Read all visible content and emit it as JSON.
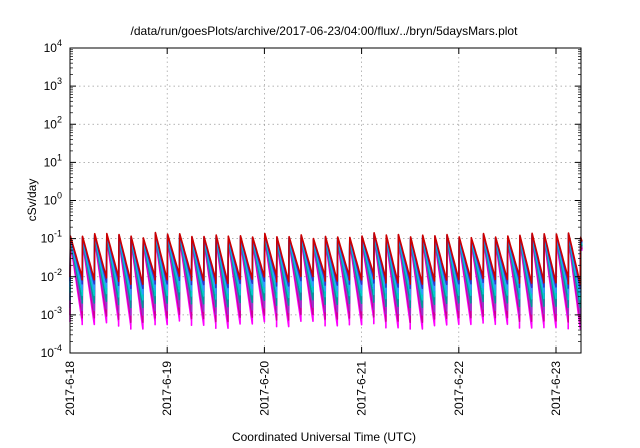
{
  "chart_data": {
    "type": "line",
    "title": "/data/run/goesPlots/archive/2017-06-23/04:00/flux/../bryn/5daysMars.plot",
    "xlabel": "Coordinated Universal Time (UTC)",
    "ylabel": "cSv/day",
    "x_tick_labels": [
      "2017-6-18",
      "2017-6-19",
      "2017-6-20",
      "2017-6-21",
      "2017-6-22",
      "2017-6-23"
    ],
    "x_range_days": [
      0,
      5.27
    ],
    "y_scale": "log",
    "ylim": [
      0.0001,
      10000
    ],
    "y_ticks": [
      {
        "base": "10",
        "exp": "-4"
      },
      {
        "base": "10",
        "exp": "-3"
      },
      {
        "base": "10",
        "exp": "-2"
      },
      {
        "base": "10",
        "exp": "-1"
      },
      {
        "base": "10",
        "exp": "0"
      },
      {
        "base": "10",
        "exp": "1"
      },
      {
        "base": "10",
        "exp": "2"
      },
      {
        "base": "10",
        "exp": "3"
      },
      {
        "base": "10",
        "exp": "4"
      }
    ],
    "grid": true,
    "cycle_period_days": 0.125,
    "series": [
      {
        "color": "#ff00ff",
        "peak": 0.09,
        "trough": 0.0006
      },
      {
        "color": "#cc0099",
        "peak": 0.095,
        "trough": 0.0009
      },
      {
        "color": "#9933cc",
        "peak": 0.1,
        "trough": 0.0014
      },
      {
        "color": "#009999",
        "peak": 0.105,
        "trough": 0.0022
      },
      {
        "color": "#00cccc",
        "peak": 0.11,
        "trough": 0.0035
      },
      {
        "color": "#3399ff",
        "peak": 0.115,
        "trough": 0.005
      },
      {
        "color": "#3333cc",
        "peak": 0.12,
        "trough": 0.007
      },
      {
        "color": "#cc0000",
        "peak": 0.125,
        "trough": 0.009
      }
    ]
  }
}
